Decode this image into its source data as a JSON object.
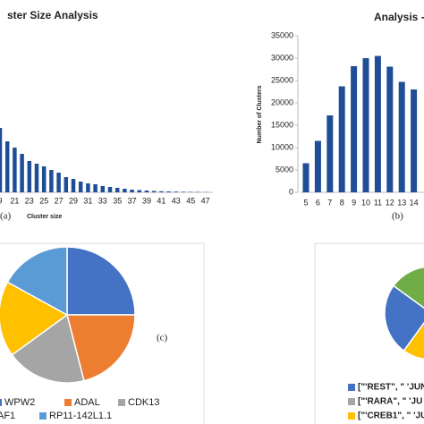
{
  "chart_data": [
    {
      "type": "bar",
      "title": "ster Size Analysis",
      "x_label": "Cluster size",
      "panel_label": "(a)",
      "categories": [
        "9",
        null,
        "21",
        null,
        "23",
        null,
        "25",
        null,
        "27",
        null,
        "29",
        null,
        "31",
        null,
        "33",
        null,
        "35",
        null,
        "37",
        null,
        "39",
        null,
        "41",
        null,
        "43",
        null,
        "45",
        null,
        "47"
      ],
      "values": [
        72,
        57,
        50,
        43,
        35,
        32,
        29,
        25,
        22,
        17,
        15,
        12,
        10,
        9,
        7,
        6,
        5,
        4,
        3,
        2.5,
        2,
        1.5,
        1.2,
        1,
        0.8,
        0.6,
        0.5,
        0.4,
        0.3
      ],
      "color": "#1f4e96",
      "ylim": [
        0,
        175
      ]
    },
    {
      "type": "bar",
      "title": "Analysis -",
      "y_label": "Number of Clusters",
      "panel_label": "(b)",
      "categories": [
        "5",
        "6",
        "7",
        "8",
        "9",
        "10",
        "11",
        "12",
        "13",
        "14"
      ],
      "values": [
        6500,
        11500,
        17200,
        23700,
        28200,
        30000,
        30500,
        28100,
        24700,
        23000
      ],
      "color": "#1f4e96",
      "ylim": [
        0,
        35000
      ],
      "yticks": [
        0,
        5000,
        10000,
        15000,
        20000,
        25000,
        30000,
        35000
      ]
    },
    {
      "type": "pie",
      "panel_label": "(c)",
      "categories": [
        "WPW2",
        "ADAL",
        "CDK13",
        "AF1",
        "RP11-142L1.1"
      ],
      "values": [
        25,
        21,
        19,
        18,
        17
      ],
      "colors": [
        "#4472c4",
        "#ed7d31",
        "#a5a5a5",
        "#ffc000",
        "#5b9bd5"
      ]
    },
    {
      "type": "pie",
      "categories": [
        "[\"'RARA\", \" 'JU",
        "[\"'CREB1\", \" 'JU",
        "[\"'REST\", \" 'JUN",
        null
      ],
      "values": [
        35,
        25,
        25,
        15
      ],
      "colors": [
        "#a5a5a5",
        "#ffc000",
        "#4472c4",
        "#70ad47"
      ]
    }
  ]
}
